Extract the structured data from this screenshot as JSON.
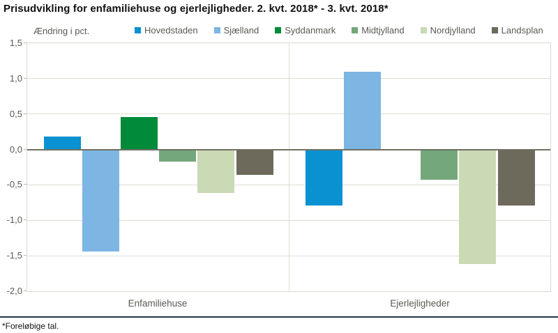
{
  "title": "Prisudvikling for enfamiliehuse og ejerlejligheder. 2. kvt. 2018* - 3. kvt. 2018*",
  "footnote": "*Foreløbige tal.",
  "chart_data": {
    "type": "bar",
    "grouped": true,
    "title": "Prisudvikling for enfamiliehuse og ejerlejligheder. 2. kvt. 2018* - 3. kvt. 2018*",
    "ylabel": "Ændring i pct.",
    "xlabel": "",
    "categories": [
      "Enfamiliehuse",
      "Ejerlejligheder"
    ],
    "series": [
      {
        "name": "Hovedstaden",
        "color": "#0991d1",
        "values": [
          0.18,
          -0.79
        ]
      },
      {
        "name": "Sjælland",
        "color": "#7db5e3",
        "values": [
          -1.44,
          1.1
        ]
      },
      {
        "name": "Syddanmark",
        "color": "#008a39",
        "values": [
          0.46,
          0.0
        ]
      },
      {
        "name": "Midtjylland",
        "color": "#74a87b",
        "values": [
          -0.17,
          -0.43
        ]
      },
      {
        "name": "Nordjylland",
        "color": "#c9dab5",
        "values": [
          -0.61,
          -1.62
        ]
      },
      {
        "name": "Landsplan",
        "color": "#6d695b",
        "values": [
          -0.36,
          -0.79
        ]
      }
    ],
    "ylim": [
      -2.0,
      1.5
    ],
    "ytick_step": 0.5,
    "ytick_labels": [
      "1,5",
      "1,0",
      "0,5",
      "0,0",
      "-0,5",
      "-1,0",
      "-1,5",
      "-2,0"
    ],
    "grid": true,
    "legend_position": "top",
    "colors": {
      "gridline": "#dcdcd4",
      "zero_line": "#6f6f62",
      "text_gray": "#595955",
      "separator": "#1b3844"
    }
  }
}
